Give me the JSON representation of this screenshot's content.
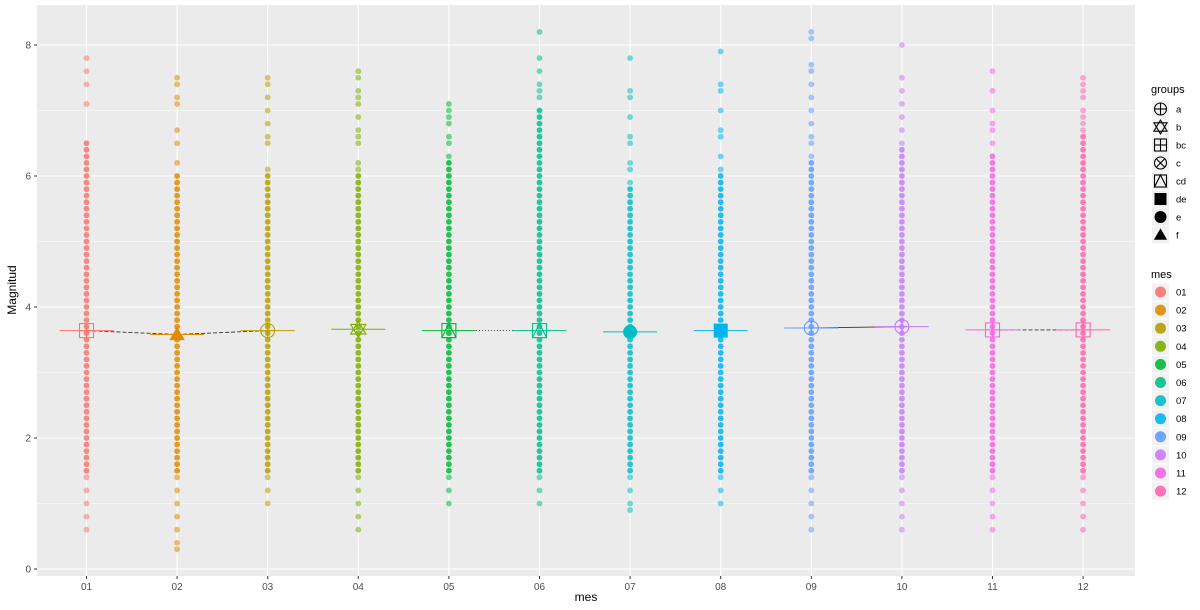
{
  "chart_data": {
    "type": "scatter",
    "title": "",
    "xlabel": "mes",
    "ylabel": "Magnitud",
    "categories": [
      "01",
      "02",
      "03",
      "04",
      "05",
      "06",
      "07",
      "08",
      "09",
      "10",
      "11",
      "12"
    ],
    "ylim": [
      -0.1,
      8.5
    ],
    "yticks": [
      0,
      2,
      4,
      6,
      8
    ],
    "grid": true,
    "panel_background": "#ebebeb",
    "colors": [
      "#F8766D",
      "#DE8C00",
      "#B79F00",
      "#7CAE00",
      "#00BA38",
      "#00C08B",
      "#00BFC4",
      "#00B4F0",
      "#619CFF",
      "#C77CFF",
      "#F564E3",
      "#FF64B0"
    ],
    "point_ranges": [
      {
        "min": 0.6,
        "max": 7.8,
        "gap_below": 1.5,
        "sparse_above": 6.5,
        "extra": [
          7.1,
          7.4,
          7.6,
          7.8
        ]
      },
      {
        "min": 0.3,
        "max": 7.5,
        "gap_below": 1.5,
        "sparse_above": 6.0,
        "extra": [
          6.2,
          6.5,
          6.7,
          7.1,
          7.2,
          7.4,
          7.5
        ]
      },
      {
        "min": 1.0,
        "max": 7.5,
        "gap_below": 1.5,
        "sparse_above": 6.0,
        "extra": [
          6.1,
          6.5,
          6.6,
          6.8,
          7.0,
          7.2,
          7.4,
          7.5
        ]
      },
      {
        "min": 0.6,
        "max": 7.6,
        "gap_below": 1.5,
        "sparse_above": 6.0,
        "extra": [
          6.1,
          6.2,
          6.5,
          6.6,
          6.7,
          6.9,
          7.1,
          7.2,
          7.3,
          7.5,
          7.6
        ]
      },
      {
        "min": 1.0,
        "max": 7.1,
        "gap_below": 1.5,
        "sparse_above": 6.2,
        "extra": [
          6.3,
          6.5,
          6.6,
          6.8,
          6.9,
          7.0,
          7.1
        ]
      },
      {
        "min": 1.0,
        "max": 8.2,
        "gap_below": 1.5,
        "sparse_above": 7.0,
        "extra": [
          7.2,
          7.3,
          7.4,
          7.6,
          7.8,
          8.2
        ]
      },
      {
        "min": 0.9,
        "max": 7.8,
        "gap_below": 1.5,
        "sparse_above": 5.8,
        "extra": [
          5.9,
          6.1,
          6.2,
          6.5,
          6.6,
          6.9,
          7.2,
          7.3,
          7.8
        ]
      },
      {
        "min": 1.0,
        "max": 7.9,
        "gap_below": 1.5,
        "sparse_above": 6.0,
        "extra": [
          6.1,
          6.3,
          6.6,
          6.7,
          7.0,
          7.3,
          7.4,
          7.9
        ]
      },
      {
        "min": 0.6,
        "max": 8.2,
        "gap_below": 1.5,
        "sparse_above": 6.2,
        "extra": [
          6.3,
          6.5,
          6.6,
          6.8,
          7.0,
          7.2,
          7.4,
          7.6,
          7.7,
          8.1,
          8.2
        ]
      },
      {
        "min": 0.6,
        "max": 8.0,
        "gap_below": 1.5,
        "sparse_above": 6.4,
        "extra": [
          6.5,
          6.7,
          6.9,
          7.1,
          7.3,
          7.5,
          8.0
        ]
      },
      {
        "min": 0.6,
        "max": 7.6,
        "gap_below": 1.5,
        "sparse_above": 6.3,
        "extra": [
          6.5,
          6.7,
          6.8,
          7.0,
          7.3,
          7.6
        ]
      },
      {
        "min": 0.6,
        "max": 7.5,
        "gap_below": 1.5,
        "sparse_above": 6.6,
        "extra": [
          6.7,
          6.8,
          6.9,
          7.0,
          7.2,
          7.3,
          7.4,
          7.5
        ]
      }
    ],
    "means": [
      3.64,
      3.58,
      3.64,
      3.66,
      3.64,
      3.64,
      3.62,
      3.64,
      3.68,
      3.7,
      3.65,
      3.65
    ],
    "mean_groups": [
      "bc",
      "f",
      "a",
      "b",
      "cd",
      "cd",
      "e",
      "de",
      "a",
      "a",
      "bc",
      "bc"
    ],
    "connectors": [
      {
        "from": 0,
        "to": 1,
        "style": "dashed"
      },
      {
        "from": 1,
        "to": 2,
        "style": "dashed"
      },
      {
        "from": 4,
        "to": 5,
        "style": "dotted"
      },
      {
        "from": 8,
        "to": 9,
        "style": "solid"
      },
      {
        "from": 10,
        "to": 11,
        "style": "dashed"
      }
    ],
    "legend_groups": {
      "title": "groups",
      "items": [
        {
          "label": "a",
          "shape": "circle-plus"
        },
        {
          "label": "b",
          "shape": "star-of-david"
        },
        {
          "label": "bc",
          "shape": "square-plus"
        },
        {
          "label": "c",
          "shape": "circle-x"
        },
        {
          "label": "cd",
          "shape": "square-triangle"
        },
        {
          "label": "de",
          "shape": "square-filled"
        },
        {
          "label": "e",
          "shape": "circle-filled"
        },
        {
          "label": "f",
          "shape": "triangle-filled"
        }
      ]
    },
    "legend_mes": {
      "title": "mes",
      "items": [
        "01",
        "02",
        "03",
        "04",
        "05",
        "06",
        "07",
        "08",
        "09",
        "10",
        "11",
        "12"
      ]
    },
    "legend_placement": "right"
  }
}
